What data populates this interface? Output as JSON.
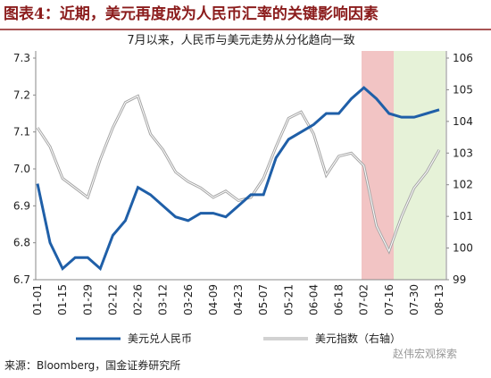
{
  "header": {
    "title": "图表4：近期，美元再度成为人民币汇率的关键影响因素"
  },
  "chart_data": {
    "type": "line",
    "subtitle": "7月以来，人民币与美元走势从分化趋向一致",
    "categories": [
      "01-01",
      null,
      "01-15",
      null,
      "01-29",
      null,
      "02-12",
      null,
      "02-26",
      null,
      "03-12",
      null,
      "03-26",
      null,
      "04-09",
      null,
      "04-23",
      null,
      "05-07",
      null,
      "05-21",
      null,
      "06-04",
      null,
      "06-18",
      null,
      "07-02",
      null,
      "07-16",
      null,
      "07-30",
      null,
      "08-13"
    ],
    "series": [
      {
        "name": "美元兑人民币",
        "color": "#1f5fa8",
        "axis": "y",
        "values": [
          6.96,
          6.8,
          6.73,
          6.76,
          6.76,
          6.73,
          6.82,
          6.86,
          6.95,
          6.93,
          6.9,
          6.87,
          6.86,
          6.88,
          6.88,
          6.87,
          6.9,
          6.93,
          6.93,
          7.03,
          7.08,
          7.1,
          7.12,
          7.15,
          7.15,
          7.19,
          7.22,
          7.19,
          7.15,
          7.14,
          7.14,
          7.15,
          7.16
        ]
      },
      {
        "name": "美元指数（右轴）",
        "color": "#a6a6a6",
        "axis": "y2",
        "values": [
          103.8,
          103.2,
          102.2,
          101.9,
          101.6,
          102.8,
          103.8,
          104.6,
          104.8,
          103.6,
          103.1,
          102.4,
          102.1,
          101.9,
          101.6,
          101.8,
          101.5,
          101.6,
          102.2,
          103.2,
          104.1,
          104.3,
          103.6,
          102.3,
          102.9,
          103.0,
          102.6,
          100.7,
          99.9,
          101.0,
          101.9,
          102.4,
          103.1
        ]
      }
    ],
    "ylim": [
      6.7,
      7.3
    ],
    "yticks": [
      6.7,
      6.8,
      6.9,
      {
        "value": 7,
        "label": "7.0"
      },
      7.1,
      7.2,
      7.3
    ],
    "y2lim": [
      99,
      106
    ],
    "y2ticks": [
      99,
      100,
      101,
      102,
      103,
      104,
      105,
      106
    ],
    "legend": "bottom"
  },
  "footer": {
    "source": "来源：Bloomberg，国金证券研究所",
    "watermark": "赵伟宏观探索"
  }
}
